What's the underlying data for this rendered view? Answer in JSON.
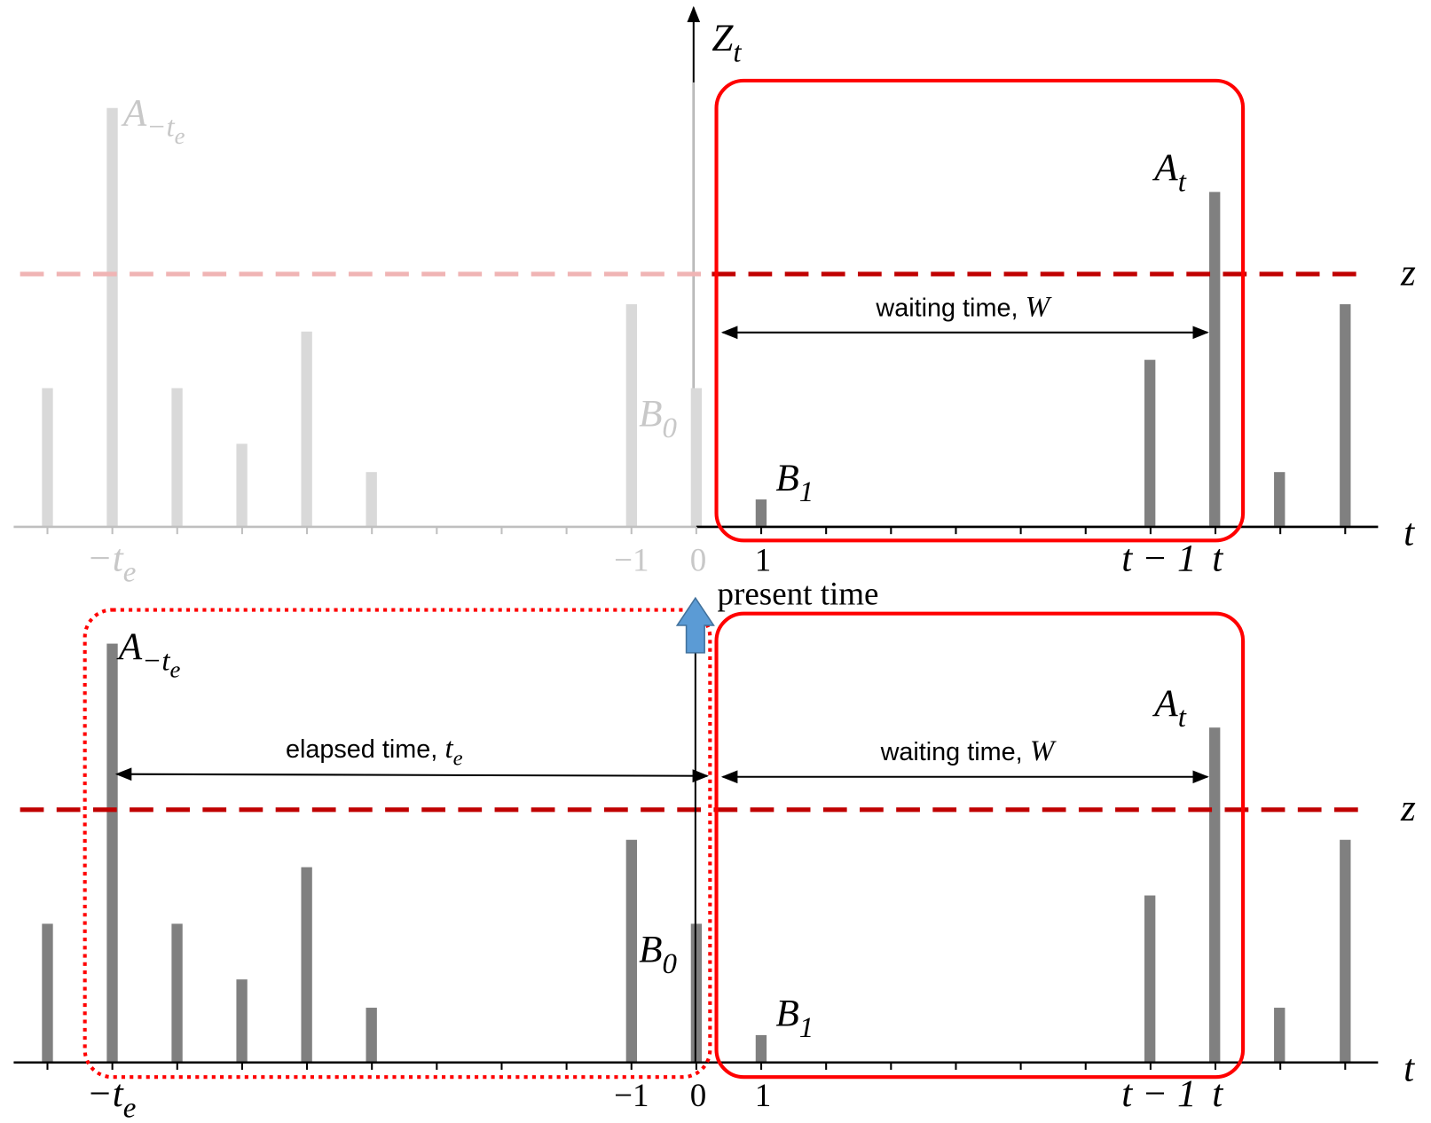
{
  "top": {
    "axis_label": {
      "main": "Z",
      "sub": "t"
    },
    "a_prev": {
      "main": "A",
      "sub": "−t",
      "subsub": "e"
    },
    "a_t": {
      "main": "A",
      "sub": "t"
    },
    "b0": {
      "main": "B",
      "sub": "0"
    },
    "b1": {
      "main": "B",
      "sub": "1"
    },
    "threshold": "z",
    "time_axis": "t",
    "waiting": {
      "text": "waiting time,",
      "var": "W"
    },
    "ticks": {
      "neg_te": {
        "main": "−t",
        "sub": "e"
      },
      "neg1": "−1",
      "zero": "0",
      "one": "1",
      "t_minus_1": "t − 1",
      "t": "t"
    },
    "present": "present time"
  },
  "bottom": {
    "a_prev": {
      "main": "A",
      "sub": "−t",
      "subsub": "e"
    },
    "a_t": {
      "main": "A",
      "sub": "t"
    },
    "b0": {
      "main": "B",
      "sub": "0"
    },
    "b1": {
      "main": "B",
      "sub": "1"
    },
    "threshold": "z",
    "time_axis": "t",
    "elapsed": {
      "text": "elapsed time,",
      "var": "t",
      "sub": "e"
    },
    "waiting": {
      "text": "waiting time,",
      "var": "W"
    },
    "ticks": {
      "neg_te": {
        "main": "−t",
        "sub": "e"
      },
      "neg1": "−1",
      "zero": "0",
      "one": "1",
      "t_minus_1": "t − 1",
      "t": "t"
    }
  }
}
